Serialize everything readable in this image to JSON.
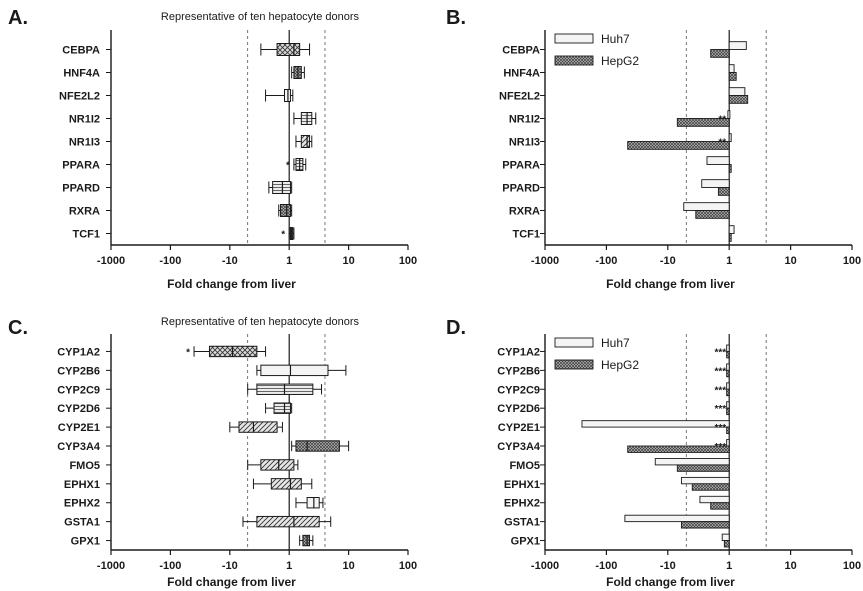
{
  "chart_data": [
    {
      "panel": "A.",
      "type": "box",
      "title": "Representative of ten hepatocyte donors",
      "xlabel": "Fold change from liver",
      "x_scale": "log-symmetric",
      "x_ticks": [
        "-1000",
        "-100",
        "-10",
        "1",
        "10",
        "100"
      ],
      "reference_lines": [
        -5,
        1,
        4
      ],
      "categories": [
        "CEBPA",
        "HNF4A",
        "NFE2L2",
        "NR1I2",
        "NR1I3",
        "PPARA",
        "PPARD",
        "RXRA",
        "TCF1"
      ],
      "fill": [
        "crosshatch",
        "dense-cross",
        "light",
        "horizontal",
        "diagonal",
        "horizontal",
        "horizontal",
        "dense-cross",
        "dense-cross"
      ],
      "boxes": [
        {
          "whisker_low": -3,
          "q1": -1.6,
          "median": 1.2,
          "q3": 1.5,
          "whisker_high": 2.2
        },
        {
          "whisker_low": 1.1,
          "q1": 1.2,
          "median": 1.4,
          "q3": 1.6,
          "whisker_high": 1.8
        },
        {
          "whisker_low": -2.5,
          "q1": -1.2,
          "median": -1.05,
          "q3": 1.05,
          "whisker_high": 1.15
        },
        {
          "whisker_low": 1.2,
          "q1": 1.6,
          "median": 2.0,
          "q3": 2.4,
          "whisker_high": 2.8
        },
        {
          "whisker_low": 1.3,
          "q1": 1.6,
          "median": 2.0,
          "q3": 2.2,
          "whisker_high": 2.4
        },
        {
          "whisker_low": 1.2,
          "q1": 1.3,
          "median": 1.5,
          "q3": 1.7,
          "whisker_high": 1.9
        },
        {
          "whisker_low": -2.2,
          "q1": -1.9,
          "median": -1.3,
          "q3": 1.05,
          "whisker_high": 1.1
        },
        {
          "whisker_low": -1.5,
          "q1": -1.4,
          "median": -1.1,
          "q3": 1.05,
          "whisker_high": 1.1
        },
        {
          "whisker_low": 1.0,
          "q1": 1.05,
          "median": 1.1,
          "q3": 1.15,
          "whisker_high": 1.2
        }
      ],
      "significance": [
        "",
        "",
        "",
        "",
        "",
        "*",
        "",
        "",
        "*"
      ]
    },
    {
      "panel": "B.",
      "type": "bar",
      "xlabel": "Fold change from liver",
      "x_scale": "log-symmetric",
      "x_ticks": [
        "-1000",
        "-100",
        "-10",
        "1",
        "10",
        "100"
      ],
      "reference_lines": [
        -5,
        1,
        4
      ],
      "categories": [
        "CEBPA",
        "HNF4A",
        "NFE2L2",
        "NR1I2",
        "NR1I3",
        "PPARA",
        "PPARD",
        "RXRA",
        "TCF1"
      ],
      "legend_position": "top-left",
      "series": [
        {
          "name": "Huh7",
          "fill": "light",
          "values": [
            1.9,
            1.2,
            1.8,
            -1.05,
            1.05,
            -2.3,
            -2.8,
            -5.5,
            1.2
          ]
        },
        {
          "name": "HepG2",
          "fill": "dense-cross",
          "values": [
            -2,
            1.3,
            2.0,
            -7,
            -45,
            1.05,
            -1.5,
            -3.5,
            1.05
          ]
        }
      ],
      "significance": [
        "",
        "",
        "",
        "**",
        "**",
        "",
        "",
        "",
        ""
      ]
    },
    {
      "panel": "C.",
      "type": "box",
      "title": "Representative of ten hepatocyte donors",
      "xlabel": "Fold change from liver",
      "x_scale": "log-symmetric",
      "x_ticks": [
        "-1000",
        "-100",
        "-10",
        "1",
        "10",
        "100"
      ],
      "reference_lines": [
        -5,
        1,
        4
      ],
      "categories": [
        "CYP1A2",
        "CYP2B6",
        "CYP2C9",
        "CYP2D6",
        "CYP2E1",
        "CYP3A4",
        "FMO5",
        "EPHX1",
        "EPHX2",
        "GSTA1",
        "GPX1"
      ],
      "fill": [
        "crosshatch",
        "light",
        "horizontal",
        "horizontal",
        "diagonal",
        "dense-cross",
        "diagonal",
        "diagonal",
        "light",
        "diagonal",
        "dense-cross"
      ],
      "boxes": [
        {
          "whisker_low": -40,
          "q1": -22,
          "median": -9,
          "q3": -3.5,
          "whisker_high": -2.5
        },
        {
          "whisker_low": -3.5,
          "q1": -3,
          "median": 1.05,
          "q3": 4.5,
          "whisker_high": 9
        },
        {
          "whisker_low": -5,
          "q1": -3.5,
          "median": -1.2,
          "q3": 2.5,
          "whisker_high": 3.5
        },
        {
          "whisker_low": -2.5,
          "q1": -1.8,
          "median": -1.2,
          "q3": 1.05,
          "whisker_high": 1.1
        },
        {
          "whisker_low": -10,
          "q1": -7,
          "median": -4,
          "q3": -1.6,
          "whisker_high": -1.3
        },
        {
          "whisker_low": 1.1,
          "q1": 1.3,
          "median": 2.0,
          "q3": 7,
          "whisker_high": 10
        },
        {
          "whisker_low": -5,
          "q1": -3,
          "median": -1.5,
          "q3": 1.2,
          "whisker_high": 1.4
        },
        {
          "whisker_low": -4,
          "q1": -2,
          "median": 1.05,
          "q3": 1.6,
          "whisker_high": 2.4
        },
        {
          "whisker_low": 1.3,
          "q1": 2.0,
          "median": 2.6,
          "q3": 3.2,
          "whisker_high": 3.7
        },
        {
          "whisker_low": -6,
          "q1": -3.5,
          "median": 1.2,
          "q3": 3.2,
          "whisker_high": 5
        },
        {
          "whisker_low": 1.5,
          "q1": 1.7,
          "median": 2.0,
          "q3": 2.2,
          "whisker_high": 2.5
        }
      ],
      "significance": [
        "*",
        "",
        "",
        "",
        "",
        "",
        "",
        "",
        "",
        "",
        ""
      ]
    },
    {
      "panel": "D.",
      "type": "bar",
      "xlabel": "Fold change from liver",
      "x_scale": "log-symmetric",
      "x_ticks": [
        "-1000",
        "-100",
        "-10",
        "1",
        "10",
        "100"
      ],
      "reference_lines": [
        -5,
        1,
        4
      ],
      "categories": [
        "CYP1A2",
        "CYP2B6",
        "CYP2C9",
        "CYP2D6",
        "CYP2E1",
        "CYP3A4",
        "FMO5",
        "EPHX1",
        "EPHX2",
        "GSTA1",
        "GPX1"
      ],
      "legend_position": "top-left",
      "series": [
        {
          "name": "Huh7",
          "fill": "light",
          "values": [
            -1.1,
            -1.1,
            -1.1,
            -1.1,
            -250,
            -1.1,
            -16,
            -6,
            -3,
            -50,
            -1.3
          ]
        },
        {
          "name": "HepG2",
          "fill": "dense-cross",
          "values": [
            -1.1,
            -1.1,
            -1.1,
            -1.1,
            -1.1,
            -45,
            -7,
            -4,
            -2,
            -6,
            -1.2
          ]
        }
      ],
      "significance": [
        "***",
        "***",
        "***",
        "***",
        "***",
        "***",
        "",
        "",
        "",
        "",
        ""
      ]
    }
  ]
}
